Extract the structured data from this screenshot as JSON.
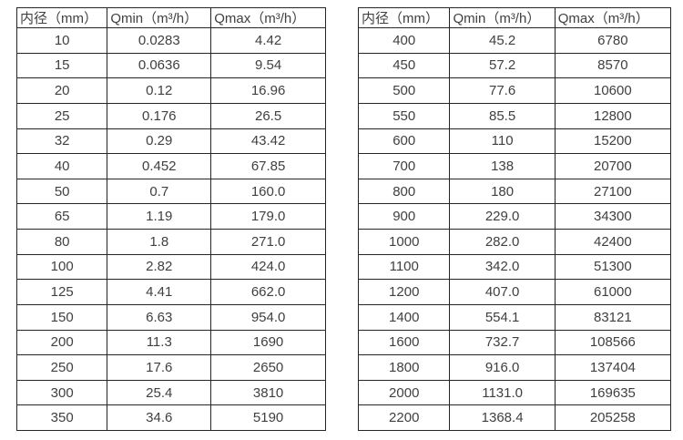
{
  "page": {
    "background": "#ffffff",
    "text_color": "#404040",
    "border_color": "#262626"
  },
  "tables": [
    {
      "name": "flow-rate-table-small-diameters",
      "headers": [
        "内径（mm）",
        "Qmin（m³/h）",
        "Qmax（m³/h）"
      ],
      "rows": [
        [
          "10",
          "0.0283",
          "4.42"
        ],
        [
          "15",
          "0.0636",
          "9.54"
        ],
        [
          "20",
          "0.12",
          "16.96"
        ],
        [
          "25",
          "0.176",
          "26.5"
        ],
        [
          "32",
          "0.29",
          "43.42"
        ],
        [
          "40",
          "0.452",
          "67.85"
        ],
        [
          "50",
          "0.7",
          "160.0"
        ],
        [
          "65",
          "1.19",
          "179.0"
        ],
        [
          "80",
          "1.8",
          "271.0"
        ],
        [
          "100",
          "2.82",
          "424.0"
        ],
        [
          "125",
          "4.41",
          "662.0"
        ],
        [
          "150",
          "6.63",
          "954.0"
        ],
        [
          "200",
          "11.3",
          "1690"
        ],
        [
          "250",
          "17.6",
          "2650"
        ],
        [
          "300",
          "25.4",
          "3810"
        ],
        [
          "350",
          "34.6",
          "5190"
        ]
      ]
    },
    {
      "name": "flow-rate-table-large-diameters",
      "headers": [
        "内径（mm）",
        "Qmin（m³/h）",
        "Qmax（m³/h）"
      ],
      "rows": [
        [
          "400",
          "45.2",
          "6780"
        ],
        [
          "450",
          "57.2",
          "8570"
        ],
        [
          "500",
          "77.6",
          "10600"
        ],
        [
          "550",
          "85.5",
          "12800"
        ],
        [
          "600",
          "110",
          "15200"
        ],
        [
          "700",
          "138",
          "20700"
        ],
        [
          "800",
          "180",
          "27100"
        ],
        [
          "900",
          "229.0",
          "34300"
        ],
        [
          "1000",
          "282.0",
          "42400"
        ],
        [
          "1100",
          "342.0",
          "51300"
        ],
        [
          "1200",
          "407.0",
          "61000"
        ],
        [
          "1400",
          "554.1",
          "83121"
        ],
        [
          "1600",
          "732.7",
          "108566"
        ],
        [
          "1800",
          "916.0",
          "137404"
        ],
        [
          "2000",
          "1131.0",
          "169635"
        ],
        [
          "2200",
          "1368.4",
          "205258"
        ]
      ]
    }
  ]
}
